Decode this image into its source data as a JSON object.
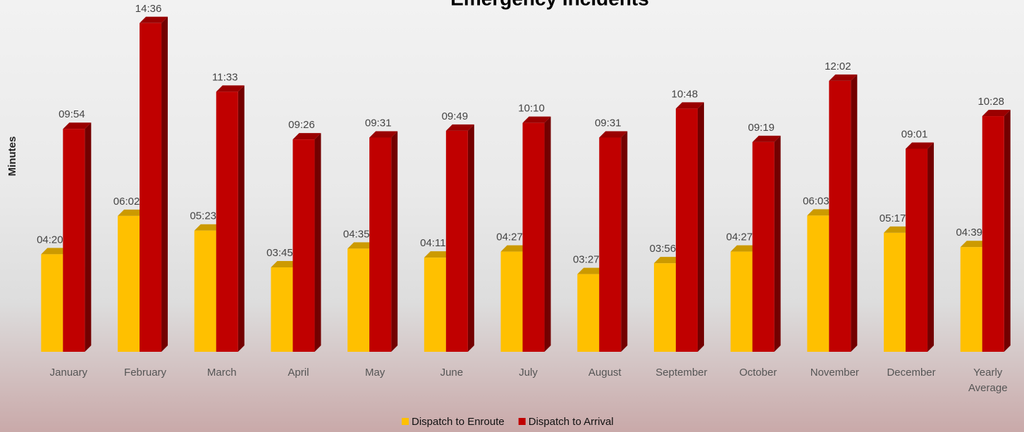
{
  "chart_data": {
    "type": "bar3d",
    "title": "Emergency Incidents",
    "y_label": "Minutes",
    "categories": [
      "January",
      "February",
      "March",
      "April",
      "May",
      "June",
      "July",
      "August",
      "September",
      "October",
      "November",
      "December",
      "Yearly Average"
    ],
    "series": [
      {
        "name": "Dispatch to Enroute",
        "color": "#ffc000",
        "values": [
          4.3333,
          6.0333,
          5.3833,
          3.75,
          4.5833,
          4.1833,
          4.45,
          3.45,
          3.9333,
          4.45,
          6.05,
          5.2833,
          4.65
        ],
        "value_labels": [
          "04:20",
          "06:02",
          "05:23",
          "03:45",
          "04:35",
          "04:11",
          "04:27",
          "03:27",
          "03:56",
          "04:27",
          "06:03",
          "05:17",
          "04:39"
        ]
      },
      {
        "name": "Dispatch to Arrival",
        "color": "#c00000",
        "values": [
          9.9,
          14.6,
          11.55,
          9.4333,
          9.5167,
          9.8167,
          10.1667,
          9.5167,
          10.8,
          9.3167,
          12.0333,
          9.0167,
          10.4667
        ],
        "value_labels": [
          "09:54",
          "14:36",
          "11:33",
          "09:26",
          "09:31",
          "09:49",
          "10:10",
          "09:31",
          "10:48",
          "09:19",
          "12:02",
          "09:01",
          "10:28"
        ]
      }
    ],
    "ylim": [
      0,
      15
    ],
    "legend": "bottom"
  }
}
